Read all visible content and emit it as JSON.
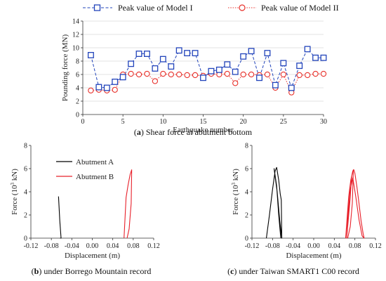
{
  "legend": {
    "model1": "Peak value of Model I",
    "model2": "Peak value of Model II"
  },
  "colors": {
    "model1": "#2244bb",
    "model2": "#e8302a",
    "abutmentA": "#000000",
    "abutmentB": "#e8202a"
  },
  "captions": {
    "a_letter": "a",
    "a_text": "Shear force at abutment bottom",
    "b_letter": "b",
    "b_text": "under Borrego Mountain record",
    "c_letter": "c",
    "c_text": "under Taiwan SMART1 C00 record"
  },
  "chart_data": [
    {
      "id": "a",
      "type": "line",
      "xlabel": "Earthquake number",
      "ylabel": "Pounding force (MN)",
      "xlim": [
        0,
        30
      ],
      "ylim": [
        0,
        14
      ],
      "xticks": [
        0,
        5,
        10,
        15,
        20,
        25,
        30
      ],
      "yticks": [
        0,
        2,
        4,
        6,
        8,
        10,
        12,
        14
      ],
      "grid": "horizontal",
      "legend_position": "top",
      "x": [
        1,
        2,
        3,
        4,
        5,
        6,
        7,
        8,
        9,
        10,
        11,
        12,
        13,
        14,
        15,
        16,
        17,
        18,
        19,
        20,
        21,
        22,
        23,
        24,
        25,
        26,
        27,
        28,
        29,
        30
      ],
      "series": [
        {
          "name": "Peak value of Model I",
          "values": [
            8.9,
            4.1,
            4.0,
            4.9,
            5.6,
            7.6,
            9.1,
            9.1,
            6.9,
            8.3,
            7.2,
            9.6,
            9.2,
            9.2,
            5.5,
            6.5,
            6.7,
            7.5,
            6.4,
            8.7,
            9.5,
            5.5,
            9.2,
            4.4,
            7.7,
            4.0,
            7.3,
            9.8,
            8.5,
            8.5
          ]
        },
        {
          "name": "Peak value of Model II",
          "values": [
            3.6,
            3.7,
            3.6,
            3.7,
            6.0,
            6.1,
            6.0,
            6.1,
            5.0,
            6.1,
            6.0,
            6.0,
            5.9,
            5.9,
            5.8,
            6.1,
            6.0,
            6.1,
            4.7,
            6.0,
            6.0,
            5.9,
            6.0,
            4.0,
            6.0,
            3.3,
            5.9,
            5.9,
            6.1,
            6.1
          ]
        }
      ]
    },
    {
      "id": "b",
      "type": "line",
      "xlabel": "Displacement (m)",
      "ylabel": "Force (10³ kN)",
      "ylabel_main": "Force (10",
      "ylabel_sup": "3",
      "ylabel_end": " kN)",
      "xlim": [
        -0.12,
        0.12
      ],
      "ylim": [
        0,
        8
      ],
      "xticks": [
        -0.12,
        -0.08,
        -0.04,
        0.0,
        0.04,
        0.08,
        0.12
      ],
      "xtick_labels": [
        "-0.12",
        "-0.08",
        "-0.04",
        "0.00",
        "0.04",
        "0.08",
        "0.12"
      ],
      "yticks": [
        0,
        2,
        4,
        6,
        8
      ],
      "legend_position": "top-center",
      "series": [
        {
          "name": "Abutment A",
          "x": [
            -0.066,
            -0.0635,
            -0.061,
            -0.062,
            -0.063
          ],
          "y": [
            3.6,
            1.5,
            0.0,
            0.0,
            0.0
          ]
        },
        {
          "name": "Abutment B",
          "x": [
            0.062,
            0.066,
            0.07,
            0.074,
            0.077,
            0.076,
            0.072,
            0.068
          ],
          "y": [
            0.0,
            3.5,
            4.6,
            5.5,
            5.9,
            3.0,
            0.8,
            0.0
          ]
        }
      ]
    },
    {
      "id": "c",
      "type": "line",
      "xlabel": "Displacement (m)",
      "ylabel": "Force (10³ kN)",
      "ylabel_main": "Force (10",
      "ylabel_sup": "3",
      "ylabel_end": " kN)",
      "xlim": [
        -0.12,
        0.12
      ],
      "ylim": [
        0,
        8
      ],
      "xticks": [
        -0.12,
        -0.08,
        -0.04,
        0.0,
        0.04,
        0.08,
        0.12
      ],
      "xtick_labels": [
        "-0.12",
        "-0.08",
        "-0.04",
        "0.00",
        "0.04",
        "0.08",
        "0.12"
      ],
      "yticks": [
        0,
        2,
        4,
        6,
        8
      ],
      "series": [
        {
          "name": "Abutment A",
          "x": [
            -0.092,
            -0.086,
            -0.08,
            -0.075,
            -0.072,
            -0.068,
            -0.065,
            -0.063,
            -0.062,
            -0.066,
            -0.071,
            -0.077,
            -0.072,
            -0.068,
            -0.064
          ],
          "y": [
            0.0,
            2.0,
            4.2,
            5.8,
            6.1,
            5.0,
            3.8,
            3.3,
            0.0,
            1.5,
            4.0,
            6.0,
            4.5,
            2.0,
            0.0
          ]
        },
        {
          "name": "Abutment B",
          "x": [
            0.062,
            0.065,
            0.068,
            0.072,
            0.076,
            0.078,
            0.08,
            0.084,
            0.088,
            0.092,
            0.096,
            0.098,
            0.094,
            0.088,
            0.082,
            0.076,
            0.071,
            0.067,
            0.064,
            0.07,
            0.074,
            0.077,
            0.075,
            0.071,
            0.066
          ],
          "y": [
            0.0,
            1.8,
            3.6,
            5.0,
            5.8,
            5.9,
            5.6,
            4.4,
            3.0,
            1.5,
            0.4,
            0.0,
            0.2,
            1.6,
            3.5,
            5.2,
            4.2,
            2.2,
            0.0,
            3.0,
            5.4,
            5.9,
            3.0,
            1.0,
            0.0
          ]
        }
      ]
    }
  ]
}
